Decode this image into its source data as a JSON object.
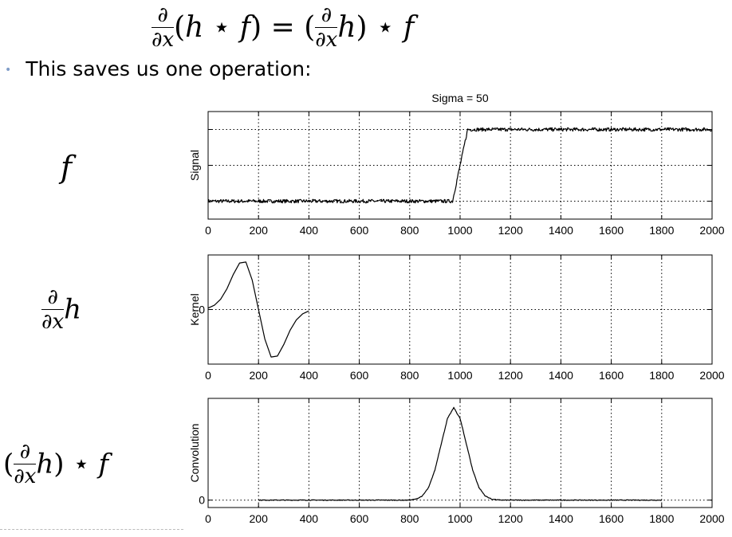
{
  "header": {
    "formula_html": "<span style=\"display:inline-block;vertical-align:middle;text-align:center;font-size:26px\"><span style=\"display:block;border-bottom:1px solid #000;padding:0 2px\">∂</span><span style=\"display:block\"><i>∂x</i></span></span><span style=\"font-size:36px;vertical-align:middle\">(<i>h</i> ⋆ <i>f</i>) = (</span><span style=\"display:inline-block;vertical-align:middle;text-align:center;font-size:26px\"><span style=\"display:block;border-bottom:1px solid #000;padding:0 2px\">∂</span><span style=\"display:block\"><i>∂x</i></span></span><span style=\"font-size:36px;vertical-align:middle\"><i>h</i>) ⋆ <i>f</i></span>"
  },
  "bullet": {
    "text": "This saves us one operation:"
  },
  "row_labels": {
    "f_html": "<i>f</i>",
    "kernel_html": "<span style=\"display:inline-block;vertical-align:middle;text-align:center;font-size:26px\"><span style=\"display:block;border-bottom:1px solid #000;padding:0 2px\">∂</span><span style=\"display:block\"><i>∂x</i></span></span><span style=\"font-size:34px;vertical-align:middle\"><i>h</i></span>",
    "conv_html": "<span style=\"font-size:34px;vertical-align:middle\">(</span><span style=\"display:inline-block;vertical-align:middle;text-align:center;font-size:26px\"><span style=\"display:block;border-bottom:1px solid #000;padding:0 2px\">∂</span><span style=\"display:block\"><i>∂x</i></span></span><span style=\"font-size:34px;vertical-align:middle\"><i>h</i>) ⋆ <i>f</i></span>"
  },
  "chart_data": [
    {
      "type": "line",
      "title": "Sigma = 50",
      "ylabel": "Signal",
      "xlim": [
        0,
        2000
      ],
      "xticks": [
        0,
        200,
        400,
        600,
        800,
        1000,
        1200,
        1400,
        1600,
        1800,
        2000
      ],
      "ylim": [
        -0.25,
        1.25
      ],
      "yticks": [
        0,
        0.5,
        1
      ],
      "yticklabels": [
        "",
        "",
        ""
      ],
      "grid": true,
      "series": [
        {
          "x": [
            0,
            970,
            1000,
            1030,
            2000
          ],
          "y": [
            0,
            0,
            0.5,
            1,
            1
          ],
          "noise": 0.025
        }
      ]
    },
    {
      "type": "line",
      "title": "",
      "ylabel": "Kernel",
      "xlim": [
        0,
        2000
      ],
      "xticks": [
        0,
        200,
        400,
        600,
        800,
        1000,
        1200,
        1400,
        1600,
        1800,
        2000
      ],
      "ylim": [
        -1.15,
        1.15
      ],
      "yticks": [
        0
      ],
      "yticklabels": [
        "0"
      ],
      "grid": true,
      "series": [
        {
          "x": [
            0,
            25,
            50,
            75,
            100,
            125,
            150,
            175,
            200,
            225,
            250,
            275,
            300,
            325,
            350,
            375,
            400
          ],
          "y": [
            0.03,
            0.09,
            0.22,
            0.44,
            0.74,
            0.98,
            1.0,
            0.62,
            0.0,
            -0.62,
            -1.0,
            -0.98,
            -0.74,
            -0.44,
            -0.22,
            -0.09,
            -0.03
          ]
        }
      ]
    },
    {
      "type": "line",
      "title": "",
      "ylabel": "Convolution",
      "xlim": [
        0,
        2000
      ],
      "xticks": [
        0,
        200,
        400,
        600,
        800,
        1000,
        1200,
        1400,
        1600,
        1800,
        2000
      ],
      "ylim": [
        -0.08,
        1.1
      ],
      "yticks": [
        0
      ],
      "yticklabels": [
        "0"
      ],
      "grid": true,
      "series": [
        {
          "x": [
            200,
            800,
            825,
            850,
            875,
            900,
            925,
            950,
            975,
            1000,
            1025,
            1050,
            1075,
            1100,
            1125,
            1150,
            1175,
            1200,
            1800
          ],
          "y": [
            0,
            0,
            0.011,
            0.044,
            0.135,
            0.325,
            0.607,
            0.882,
            1.0,
            0.882,
            0.607,
            0.325,
            0.135,
            0.044,
            0.011,
            0.002,
            0.0,
            0,
            0
          ],
          "noise": 0.004
        }
      ]
    }
  ]
}
